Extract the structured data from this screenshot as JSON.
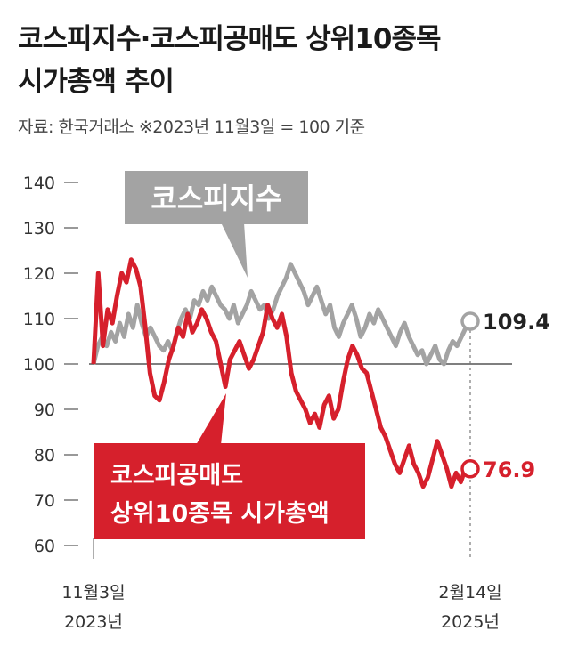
{
  "title_line1": "코스피지수·코스피공매도 상위10종목",
  "title_line2": "시가총액 추이",
  "source": "자료: 한국거래소 ※2023년 11월3일 = 100 기준",
  "chart_data": {
    "type": "line",
    "ylim": [
      60,
      140
    ],
    "yticks": [
      60,
      70,
      80,
      90,
      100,
      110,
      120,
      130,
      140
    ],
    "baseline": 100,
    "x_start_label": [
      "11월3일",
      "2023년"
    ],
    "x_end_label": [
      "2월14일",
      "2025년"
    ],
    "series": [
      {
        "name": "코스피지수",
        "label": "코스피지수",
        "color": "#a3a3a3",
        "end_value": "109.4",
        "values": [
          100,
          104,
          106,
          104,
          107,
          105,
          109,
          106,
          111,
          108,
          113,
          109,
          106,
          108,
          106,
          104,
          103,
          105,
          103,
          107,
          110,
          112,
          110,
          114,
          113,
          116,
          114,
          117,
          115,
          113,
          112,
          110,
          113,
          109,
          111,
          113,
          116,
          114,
          112,
          113,
          110,
          112,
          115,
          117,
          119,
          122,
          120,
          118,
          116,
          113,
          115,
          117,
          114,
          111,
          113,
          108,
          106,
          109,
          111,
          113,
          110,
          106,
          108,
          111,
          109,
          112,
          110,
          108,
          106,
          104,
          107,
          109,
          106,
          104,
          102,
          103,
          100,
          102,
          104,
          101,
          100,
          103,
          105,
          104,
          106,
          108,
          109.4
        ]
      },
      {
        "name": "코스피공매도 상위10종목 시가총액",
        "label_lines": [
          "코스피공매도",
          "상위10종목 시가총액"
        ],
        "color": "#d6202c",
        "end_value": "76.9",
        "values": [
          100,
          120,
          104,
          112,
          109,
          115,
          120,
          118,
          123,
          121,
          117,
          108,
          98,
          93,
          92,
          96,
          101,
          104,
          108,
          106,
          111,
          107,
          109,
          112,
          110,
          107,
          105,
          100,
          95,
          101,
          103,
          105,
          102,
          99,
          101,
          104,
          107,
          113,
          110,
          108,
          111,
          106,
          98,
          94,
          92,
          90,
          87,
          89,
          86,
          91,
          93,
          88,
          90,
          96,
          101,
          104,
          102,
          99,
          98,
          94,
          90,
          86,
          84,
          81,
          78,
          76,
          79,
          82,
          78,
          76,
          73,
          75,
          79,
          83,
          80,
          77,
          73,
          76,
          74,
          77,
          76.9
        ]
      }
    ]
  }
}
